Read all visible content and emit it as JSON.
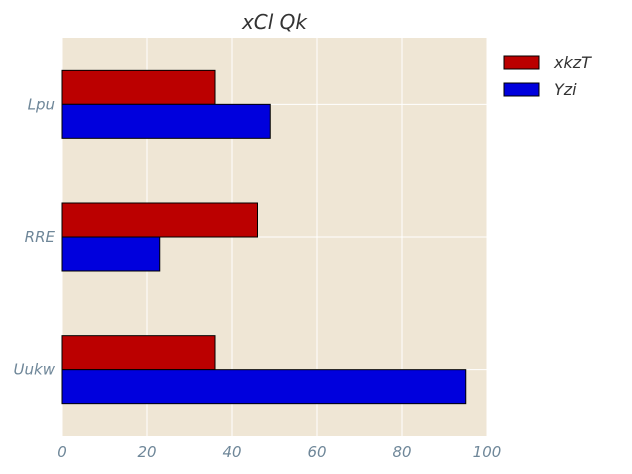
{
  "chart_data": {
    "type": "bar",
    "orientation": "horizontal",
    "title": "xCl Qk",
    "xlabel": "",
    "ylabel": "",
    "categories": [
      "Lpu",
      "RRE",
      "Uukw"
    ],
    "series": [
      {
        "name": "xkzT",
        "values": [
          36,
          46,
          36
        ],
        "color": "#bb0000"
      },
      {
        "name": "Yzi",
        "values": [
          49,
          23,
          95
        ],
        "color": "#0000dd"
      }
    ],
    "xlim": [
      0,
      100
    ],
    "xticks": [
      0,
      20,
      40,
      60,
      80,
      100
    ],
    "grid": true,
    "legend_position": "top-right",
    "background_color": "#efe6d5",
    "grid_color": "#ffffff"
  }
}
